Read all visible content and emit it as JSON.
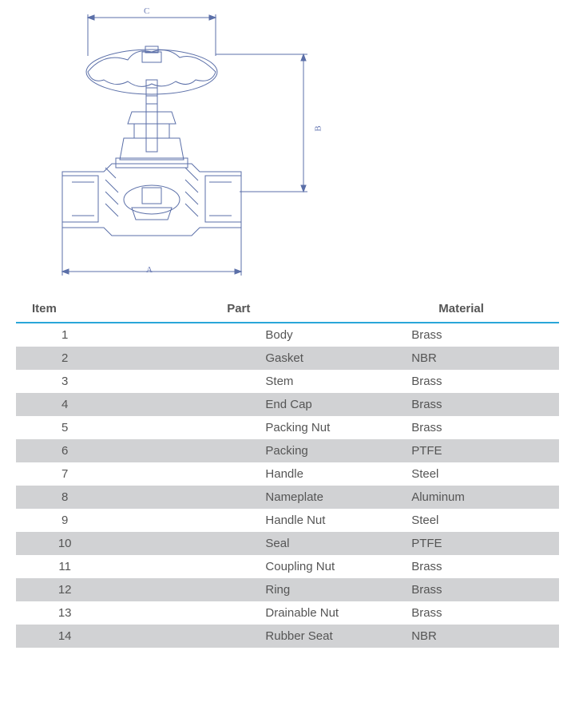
{
  "diagram": {
    "stroke": "#5b6fa8",
    "stroke_width": 1,
    "label_color": "#6a7bb5",
    "label_fontsize": 11,
    "dim_A": "A",
    "dim_B": "B",
    "dim_C": "C"
  },
  "table": {
    "header_border_color": "#2aa6d8",
    "row_even_bg": "#d1d2d4",
    "row_odd_bg": "#ffffff",
    "text_color": "#555555",
    "columns": {
      "item": "Item",
      "part": "Part",
      "material": "Material"
    },
    "rows": [
      {
        "item": "1",
        "part": "Body",
        "material": "Brass"
      },
      {
        "item": "2",
        "part": "Gasket",
        "material": "NBR"
      },
      {
        "item": "3",
        "part": "Stem",
        "material": "Brass"
      },
      {
        "item": "4",
        "part": "End Cap",
        "material": "Brass"
      },
      {
        "item": "5",
        "part": "Packing  Nut",
        "material": "Brass"
      },
      {
        "item": "6",
        "part": "Packing",
        "material": "PTFE"
      },
      {
        "item": "7",
        "part": "Handle",
        "material": "Steel"
      },
      {
        "item": "8",
        "part": "Nameplate",
        "material": "Aluminum"
      },
      {
        "item": "9",
        "part": "Handle Nut",
        "material": "Steel"
      },
      {
        "item": "10",
        "part": "Seal",
        "material": "PTFE"
      },
      {
        "item": "11",
        "part": "Coupling Nut",
        "material": "Brass"
      },
      {
        "item": "12",
        "part": "Ring",
        "material": "Brass"
      },
      {
        "item": "13",
        "part": "Drainable Nut",
        "material": "Brass"
      },
      {
        "item": "14",
        "part": "Rubber Seat",
        "material": "NBR"
      }
    ]
  }
}
